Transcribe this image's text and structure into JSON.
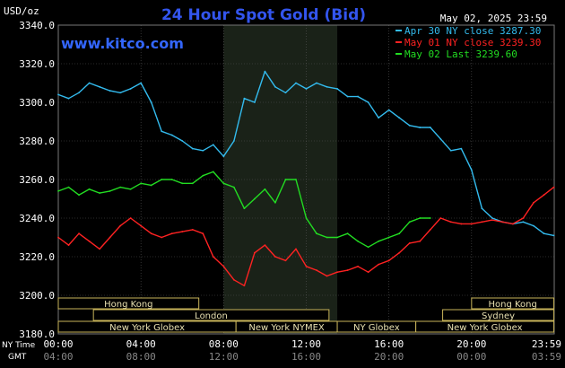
{
  "header": {
    "title": "24 Hour Spot Gold (Bid)",
    "units": "USD/oz",
    "datetime": "May 02, 2025 23:59",
    "website": "www.kitco.com"
  },
  "legend": [
    {
      "label": "Apr 30 NY close 3287.30",
      "color": "#33bbee"
    },
    {
      "label": "May 01 NY close 3239.30",
      "color": "#ff2222"
    },
    {
      "label": "May 02 Last 3239.60",
      "color": "#22dd22"
    }
  ],
  "y_ticks": [
    "3340.0",
    "3320.0",
    "3300.0",
    "3280.0",
    "3260.0",
    "3240.0",
    "3220.0",
    "3200.0",
    "3180.0"
  ],
  "x_axis": {
    "ny_label": "NY Time",
    "gmt_label": "GMT",
    "ny_ticks": [
      "00:00",
      "04:00",
      "08:00",
      "12:00",
      "16:00",
      "20:00",
      "23:59"
    ],
    "gmt_ticks": [
      "04:00",
      "08:00",
      "12:00",
      "16:00",
      "20:00",
      "00:00",
      "03:59"
    ]
  },
  "market_bars": [
    {
      "label": "Hong Kong"
    },
    {
      "label": "London"
    },
    {
      "label": "New York Globex"
    },
    {
      "label": "New York NYMEX"
    },
    {
      "label": "NY Globex"
    },
    {
      "label": "Hong Kong"
    },
    {
      "label": "Sydney"
    },
    {
      "label": "New York Globex"
    }
  ],
  "colors": {
    "background": "#000000",
    "plot_bg": "#000000",
    "shade": "#1a2218",
    "grid": "#555555",
    "title": "#3355ee",
    "url": "#3366ff",
    "text": "#ffffff",
    "axis_text": "#ffffff",
    "market_bg": "#000000",
    "market_border": "#c8b45a",
    "market_text": "#e8e0b0"
  },
  "chart_data": {
    "type": "line",
    "title": "24 Hour Spot Gold (Bid)",
    "ylabel": "USD/oz",
    "xlabel": "NY Time",
    "ylim": [
      3180,
      3340
    ],
    "xlim": [
      0,
      24
    ],
    "grid": true,
    "legend_position": "top-right",
    "series": [
      {
        "name": "Apr 30 NY close 3287.30",
        "color": "#33bbee",
        "x": [
          0,
          0.5,
          1,
          1.5,
          2,
          2.5,
          3,
          3.5,
          4,
          4.5,
          5,
          5.5,
          6,
          6.5,
          7,
          7.5,
          8,
          8.5,
          9,
          9.5,
          10,
          10.5,
          11,
          11.5,
          12,
          12.5,
          13,
          13.5,
          14,
          14.5,
          15,
          15.5,
          16,
          16.5,
          17,
          17.5,
          18,
          18.5,
          19,
          19.5,
          20,
          20.5,
          21,
          21.5,
          22,
          22.5,
          23,
          23.5,
          23.98
        ],
        "values": [
          3304,
          3302,
          3305,
          3310,
          3308,
          3306,
          3305,
          3307,
          3310,
          3300,
          3285,
          3283,
          3280,
          3276,
          3275,
          3278,
          3272,
          3280,
          3302,
          3300,
          3316,
          3308,
          3305,
          3310,
          3307,
          3310,
          3308,
          3307,
          3303,
          3303,
          3300,
          3292,
          3296,
          3292,
          3288,
          3287,
          3287,
          3281,
          3275,
          3276,
          3265,
          3245,
          3240,
          3238,
          3237,
          3238,
          3236,
          3232,
          3231
        ]
      },
      {
        "name": "May 01 NY close 3239.30",
        "color": "#ff2222",
        "x": [
          0,
          0.5,
          1,
          1.5,
          2,
          2.5,
          3,
          3.5,
          4,
          4.5,
          5,
          5.5,
          6,
          6.5,
          7,
          7.5,
          8,
          8.5,
          9,
          9.5,
          10,
          10.5,
          11,
          11.5,
          12,
          12.5,
          13,
          13.5,
          14,
          14.5,
          15,
          15.5,
          16,
          16.5,
          17,
          17.5,
          18,
          18.5,
          19,
          19.5,
          20,
          20.5,
          21,
          21.5,
          22,
          22.5,
          23,
          23.5,
          23.98
        ],
        "values": [
          3230,
          3226,
          3232,
          3228,
          3224,
          3230,
          3236,
          3240,
          3236,
          3232,
          3230,
          3232,
          3233,
          3234,
          3232,
          3220,
          3215,
          3208,
          3205,
          3222,
          3226,
          3220,
          3218,
          3224,
          3215,
          3213,
          3210,
          3212,
          3213,
          3215,
          3212,
          3216,
          3218,
          3222,
          3227,
          3228,
          3234,
          3240,
          3238,
          3237,
          3237,
          3238,
          3239,
          3238,
          3237,
          3240,
          3248,
          3252,
          3256
        ]
      },
      {
        "name": "May 02 Last 3239.60",
        "color": "#22dd22",
        "x": [
          0,
          0.5,
          1,
          1.5,
          2,
          2.5,
          3,
          3.5,
          4,
          4.5,
          5,
          5.5,
          6,
          6.5,
          7,
          7.5,
          8,
          8.5,
          9,
          9.5,
          10,
          10.5,
          11,
          11.5,
          12,
          12.5,
          13,
          13.5,
          14,
          14.5,
          15,
          15.5,
          16,
          16.5,
          17,
          17.5,
          18
        ],
        "values": [
          3254,
          3256,
          3252,
          3255,
          3253,
          3254,
          3256,
          3255,
          3258,
          3257,
          3260,
          3260,
          3258,
          3258,
          3262,
          3264,
          3258,
          3256,
          3245,
          3250,
          3255,
          3248,
          3260,
          3260,
          3240,
          3232,
          3230,
          3230,
          3232,
          3228,
          3225,
          3228,
          3230,
          3232,
          3238,
          3240,
          3240
        ]
      }
    ]
  }
}
